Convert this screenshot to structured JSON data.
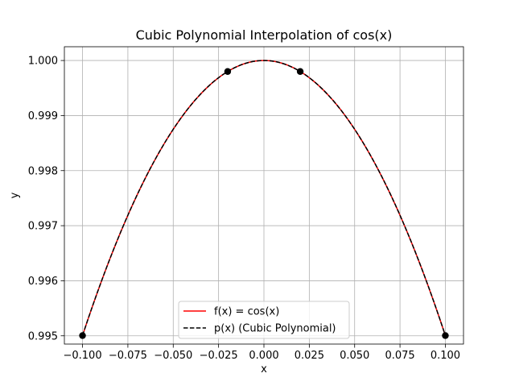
{
  "chart_data": {
    "type": "line",
    "title": "Cubic Polynomial Interpolation of cos(x)",
    "xlabel": "x",
    "ylabel": "y",
    "xlim": [
      -0.11,
      0.11
    ],
    "ylim": [
      0.99485,
      1.00025
    ],
    "xticks": [
      -0.1,
      -0.075,
      -0.05,
      -0.025,
      0.0,
      0.025,
      0.05,
      0.075,
      0.1
    ],
    "xtick_labels": [
      "−0.100",
      "−0.075",
      "−0.050",
      "−0.025",
      "0.000",
      "0.025",
      "0.050",
      "0.075",
      "0.100"
    ],
    "yticks": [
      0.995,
      0.996,
      0.997,
      0.998,
      0.999,
      1.0
    ],
    "ytick_labels": [
      "0.995",
      "0.996",
      "0.997",
      "0.998",
      "0.999",
      "1.000"
    ],
    "grid": true,
    "legend_position": "lower-center",
    "x_range": [
      -0.1,
      0.1
    ],
    "series": [
      {
        "name": "f(x) = cos(x)",
        "function": "cos",
        "color": "#ff0000",
        "style": "solid"
      },
      {
        "name": "p(x) (Cubic Polynomial)",
        "function": "cubic_interpolant",
        "color": "#000000",
        "style": "dashed"
      }
    ],
    "points": {
      "x": [
        -0.1,
        -0.02,
        0.02,
        0.1
      ],
      "y": [
        0.995004,
        0.9998,
        0.9998,
        0.995004
      ],
      "color": "#000000"
    }
  }
}
